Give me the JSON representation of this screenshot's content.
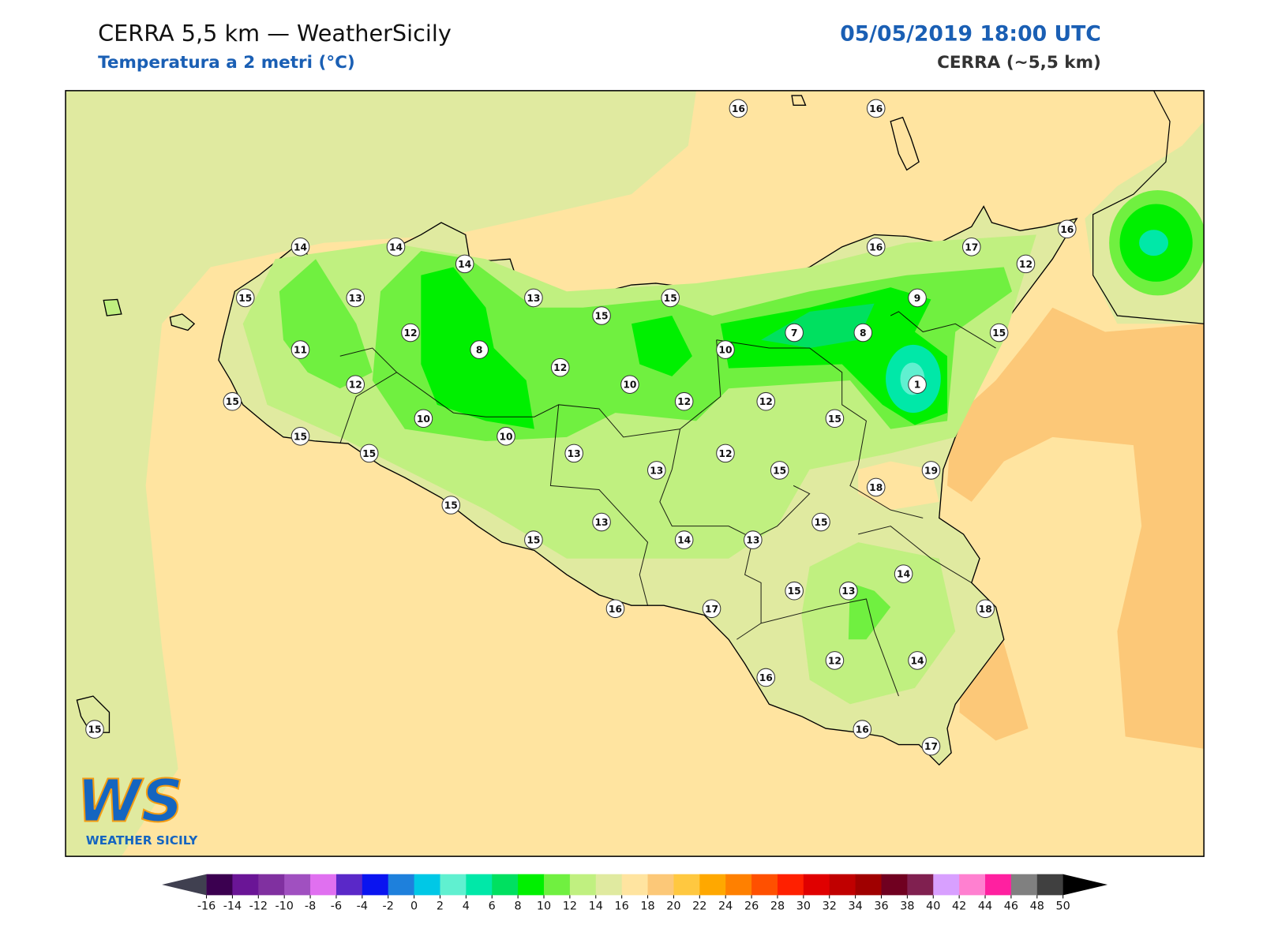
{
  "header": {
    "title": "CERRA 5,5 km — WeatherSicily",
    "subtitle": "Temperatura a 2 metri (°C)",
    "datetime": "05/05/2019 18:00 UTC",
    "model": "CERRA (~5,5 km)"
  },
  "stations": [
    16,
    16,
    14,
    14,
    14,
    16,
    17,
    16,
    12,
    15,
    13,
    13,
    15,
    15,
    9,
    7,
    8,
    15,
    12,
    11,
    8,
    10,
    12,
    1,
    12,
    10,
    15,
    12,
    12,
    10,
    15,
    15,
    10,
    15,
    13,
    12,
    13,
    15,
    19,
    18,
    15,
    13,
    15,
    15,
    14,
    13,
    14,
    15,
    13,
    16,
    17,
    18,
    12,
    14,
    16,
    15,
    16,
    17
  ],
  "colorbar": {
    "ticks": [
      -16,
      -14,
      -12,
      -10,
      -8,
      -6,
      -4,
      -2,
      0,
      2,
      4,
      6,
      8,
      10,
      12,
      14,
      16,
      18,
      20,
      22,
      24,
      26,
      28,
      30,
      32,
      34,
      36,
      38,
      40,
      42,
      44,
      46,
      48,
      50
    ],
    "colors": [
      "#3b0050",
      "#6a1596",
      "#8030a0",
      "#a050c0",
      "#e070f0",
      "#5a28c8",
      "#0a14f0",
      "#1e80dc",
      "#00c8e6",
      "#60f0d0",
      "#00e8a8",
      "#00e060",
      "#00f000",
      "#70f040",
      "#c0f080",
      "#e0eaa0",
      "#ffe4a0",
      "#fcc878",
      "#ffc840",
      "#ffa800",
      "#ff8000",
      "#ff5000",
      "#ff2000",
      "#e00000",
      "#c00000",
      "#a00000",
      "#700020",
      "#802050",
      "#d8a0ff",
      "#ff80d0",
      "#ff20a0",
      "#808080",
      "#404040"
    ],
    "under_color": "#404050",
    "over_color": "#000000"
  },
  "logo": {
    "mark": "WS",
    "name": "WEATHER SICILY"
  }
}
